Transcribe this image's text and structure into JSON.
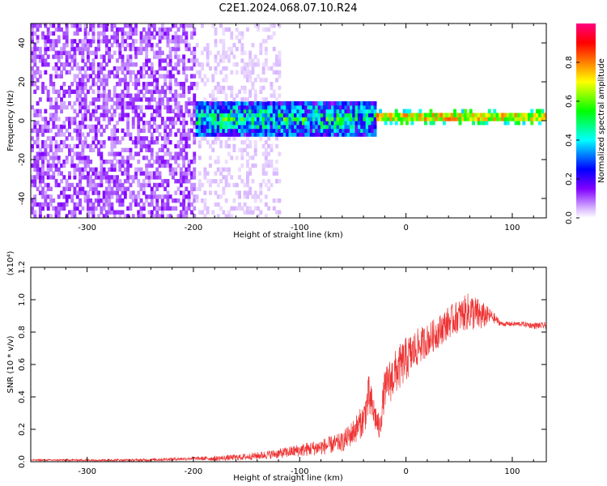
{
  "title": "C2E1.2024.068.07.10.R24",
  "colors": {
    "snr_line": "#ee3333",
    "axis": "#000000",
    "background": "#ffffff"
  },
  "chart_data": [
    {
      "type": "heatmap",
      "xlabel": "Height of straight line (km)",
      "ylabel": "Frequency (Hz)",
      "xlim": [
        -353,
        132
      ],
      "ylim": [
        -50,
        50
      ],
      "xticks": [
        -300,
        -200,
        -100,
        0,
        100
      ],
      "xtick_labels": [
        "-300",
        "-200",
        "-100",
        "0",
        "100"
      ],
      "yticks": [
        -40,
        -20,
        0,
        20,
        40
      ],
      "ytick_labels": [
        "-40",
        "-20",
        "0",
        "20",
        "40"
      ],
      "colorbar": {
        "label": "Normalized spectral amplitude",
        "range": [
          0,
          1
        ],
        "ticks": [
          0.0,
          0.2,
          0.4,
          0.6,
          0.8
        ],
        "tick_labels": [
          "0.0",
          "0.2",
          "0.4",
          "0.6",
          "0.8"
        ],
        "colormap": "rainbow (white-violet-blue-cyan-green-yellow-red-magenta)"
      },
      "features": [
        {
          "x_range": [
            -353,
            -200
          ],
          "freq_range": [
            -50,
            50
          ],
          "amplitude_range": [
            0.05,
            0.15
          ]
        },
        {
          "x_range": [
            -200,
            -120
          ],
          "freq_range": [
            -50,
            50
          ],
          "amplitude_range": [
            0.0,
            0.05
          ]
        },
        {
          "x_range": [
            -200,
            -30
          ],
          "freq_center": 0,
          "freq_halfwidth": 8,
          "amplitude_range": [
            0.2,
            0.65
          ]
        },
        {
          "x_range": [
            -30,
            132
          ],
          "freq_center": 1,
          "freq_halfwidth": 2,
          "amplitude_range": [
            0.6,
            0.95
          ]
        }
      ]
    },
    {
      "type": "line",
      "xlabel": "Height of straight line (km)",
      "ylabel": "SNR (10 * v/v)",
      "y_scale_label": "(x10⁴)",
      "xlim": [
        -353,
        132
      ],
      "ylim": [
        0,
        1.2
      ],
      "xticks": [
        -300,
        -200,
        -100,
        0,
        100
      ],
      "xtick_labels": [
        "-300",
        "-200",
        "-100",
        "0",
        "100"
      ],
      "yticks": [
        0.0,
        0.2,
        0.4,
        0.6,
        0.8,
        1.0,
        1.2
      ],
      "ytick_labels": [
        "0.0",
        "0.2",
        "0.4",
        "0.6",
        "0.8",
        "1.0",
        "1.2"
      ],
      "series": [
        {
          "x": [
            -353,
            -300,
            -250,
            -200,
            -180,
            -150,
            -120,
            -100,
            -80,
            -60,
            -50,
            -40,
            -35,
            -30,
            -25,
            -20,
            -15,
            -10,
            0,
            10,
            20,
            30,
            40,
            50,
            60,
            70,
            80,
            90,
            100,
            110,
            120,
            132
          ],
          "y": [
            0.01,
            0.01,
            0.01,
            0.02,
            0.02,
            0.03,
            0.05,
            0.07,
            0.09,
            0.12,
            0.18,
            0.26,
            0.4,
            0.3,
            0.2,
            0.45,
            0.5,
            0.55,
            0.63,
            0.7,
            0.75,
            0.8,
            0.86,
            0.9,
            0.93,
            0.9,
            0.9,
            0.85,
            0.85,
            0.85,
            0.84,
            0.84
          ],
          "noise": [
            0.005,
            0.006,
            0.008,
            0.01,
            0.015,
            0.02,
            0.03,
            0.04,
            0.05,
            0.06,
            0.08,
            0.1,
            0.14,
            0.1,
            0.08,
            0.12,
            0.14,
            0.14,
            0.14,
            0.12,
            0.1,
            0.1,
            0.1,
            0.1,
            0.12,
            0.1,
            0.04,
            0.015,
            0.015,
            0.015,
            0.02,
            0.02
          ]
        }
      ]
    }
  ]
}
